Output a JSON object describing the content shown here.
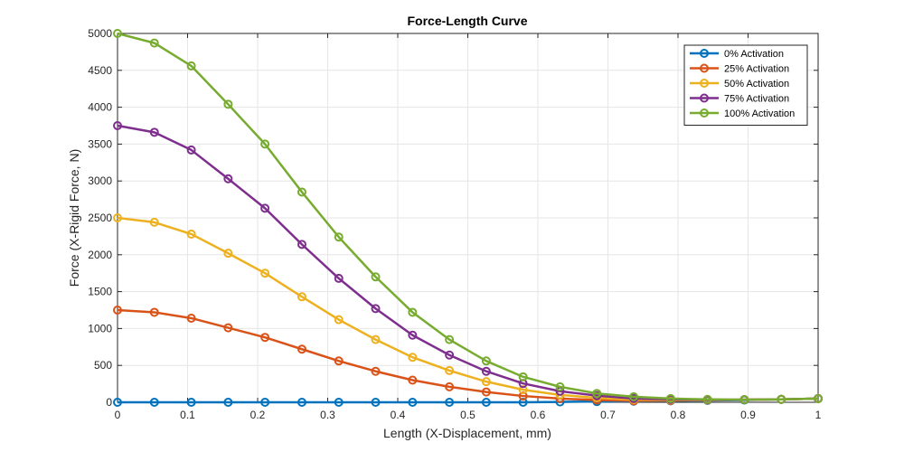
{
  "chart_data": {
    "type": "line",
    "title": "Force-Length Curve",
    "xlabel": "Length (X-Displacement, mm)",
    "ylabel": "Force (X-Rigid Force, N)",
    "xlim": [
      0,
      1
    ],
    "ylim": [
      0,
      5000
    ],
    "x_ticks": [
      "0",
      "0.1",
      "0.2",
      "0.3",
      "0.4",
      "0.5",
      "0.6",
      "0.7",
      "0.8",
      "0.9",
      "1"
    ],
    "y_ticks": [
      "0",
      "500",
      "1000",
      "1500",
      "2000",
      "2500",
      "3000",
      "3500",
      "4000",
      "4500",
      "5000"
    ],
    "grid": true,
    "legend_position": "top-right",
    "x": [
      0,
      0.0526,
      0.1053,
      0.1579,
      0.2105,
      0.2632,
      0.3158,
      0.3684,
      0.4211,
      0.4737,
      0.5263,
      0.5789,
      0.6316,
      0.6842,
      0.7368,
      0.7895,
      0.8421,
      0.8947,
      0.9474,
      1.0
    ],
    "series": [
      {
        "name": "0% Activation",
        "color": "#0072BD",
        "values": [
          0,
          0,
          0,
          0,
          0,
          0,
          0,
          0,
          0,
          0,
          0,
          0,
          5,
          10,
          15,
          20,
          25,
          30,
          40,
          50
        ]
      },
      {
        "name": "25% Activation",
        "color": "#D95319",
        "values": [
          1250,
          1220,
          1140,
          1010,
          880,
          720,
          560,
          420,
          300,
          210,
          140,
          85,
          50,
          30,
          20,
          25,
          30,
          35,
          40,
          50
        ]
      },
      {
        "name": "50% Activation",
        "color": "#EDB120",
        "values": [
          2500,
          2440,
          2280,
          2020,
          1750,
          1430,
          1120,
          850,
          610,
          430,
          280,
          170,
          100,
          60,
          35,
          30,
          30,
          35,
          40,
          50
        ]
      },
      {
        "name": "75% Activation",
        "color": "#7E2F8E",
        "values": [
          3750,
          3660,
          3420,
          3030,
          2630,
          2140,
          1680,
          1270,
          910,
          640,
          420,
          255,
          150,
          90,
          50,
          40,
          35,
          35,
          40,
          50
        ]
      },
      {
        "name": "100% Activation",
        "color": "#77AC30",
        "values": [
          5000,
          4870,
          4560,
          4040,
          3500,
          2850,
          2240,
          1700,
          1220,
          850,
          560,
          345,
          210,
          120,
          75,
          50,
          40,
          35,
          40,
          50
        ]
      }
    ]
  }
}
